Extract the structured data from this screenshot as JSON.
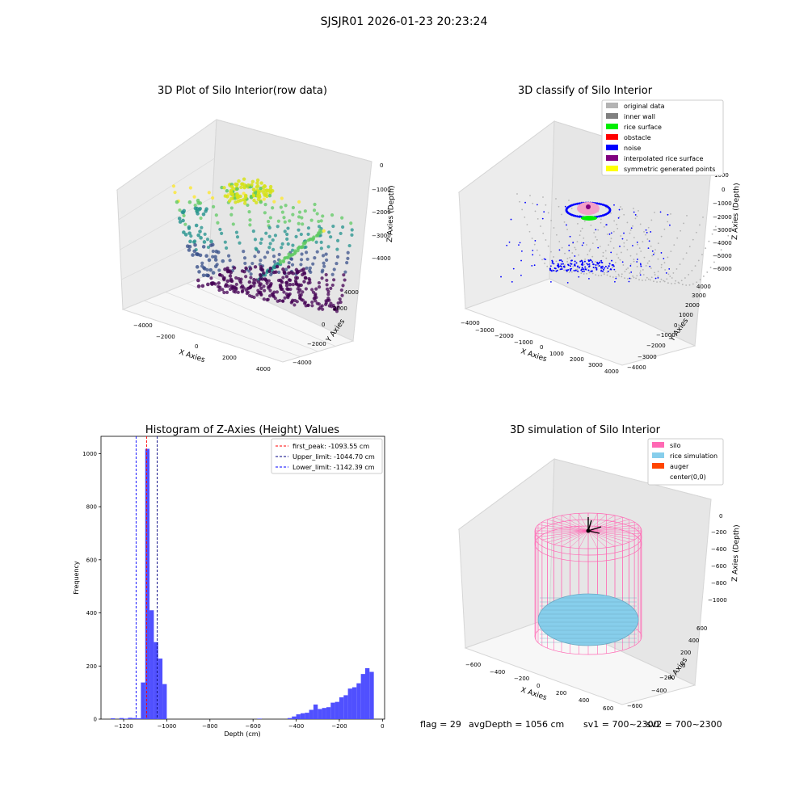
{
  "figure": {
    "suptitle": "SJSJR01 2026-01-23 20:23:24",
    "footer": {
      "flag": "flag = 29",
      "avg_depth": "avgDepth = 1056 cm",
      "sv1": "sv1 = 700~2300",
      "sv2": "sv2 = 700~2300"
    }
  },
  "colors": {
    "hist_bar": "#5050ff",
    "first_peak": "#ff0000",
    "upper_limit": "#000080",
    "lower_limit": "#0000ff",
    "original_data": "#b3b3b3",
    "inner_wall": "#808080",
    "rice_surface": "#00ee00",
    "obstacle": "#ff0000",
    "noise": "#0000ff",
    "interpolated_rice_surface": "#800080",
    "symmetric_generated_points": "#ffff00",
    "silo": "#ff69b4",
    "rice_simulation": "#87ceeb",
    "auger": "#ff4500"
  },
  "chart_data": [
    {
      "type": "scatter3d",
      "title": "3D Plot of Silo Interior(row data)",
      "xlabel": "X Axies",
      "ylabel": "Y Axies",
      "zlabel": "Z Axies (Depth)",
      "x_ticks": [
        "−4000",
        "−2000",
        "0",
        "2000",
        "4000"
      ],
      "y_ticks": [
        "−4000",
        "−2000",
        "0",
        "2000",
        "4000"
      ],
      "z_ticks": [
        "0",
        "−1000",
        "−2000",
        "−3000",
        "−4000"
      ],
      "colormap": "viridis"
    },
    {
      "type": "scatter3d",
      "title": "3D classify of Silo Interior",
      "xlabel": "X Axies",
      "ylabel": "Y Axies",
      "zlabel": "Z Axies (Depth)",
      "x_ticks": [
        "−4000",
        "−3000",
        "−2000",
        "−1000",
        "0",
        "1000",
        "2000",
        "3000",
        "4000"
      ],
      "y_ticks": [
        "−4000",
        "−3000",
        "−2000",
        "−1000",
        "0",
        "1000",
        "2000",
        "3000",
        "4000"
      ],
      "z_ticks": [
        "1000",
        "0",
        "−1000",
        "−2000",
        "−3000",
        "−4000",
        "−5000",
        "−6000"
      ],
      "legend": [
        {
          "label": "original data",
          "color": "#b3b3b3"
        },
        {
          "label": "inner wall",
          "color": "#808080"
        },
        {
          "label": "rice surface",
          "color": "#00ee00"
        },
        {
          "label": "obstacle",
          "color": "#ff0000"
        },
        {
          "label": "noise",
          "color": "#0000ff"
        },
        {
          "label": "interpolated rice surface",
          "color": "#800080"
        },
        {
          "label": "symmetric generated points",
          "color": "#ffff00"
        }
      ]
    },
    {
      "type": "bar",
      "title": "Histogram of Z-Axies (Height) Values",
      "xlabel": "Depth (cm)",
      "ylabel": "Frequency",
      "xlim": [
        -1305,
        10
      ],
      "ylim": [
        0,
        1065
      ],
      "x_ticks": [
        -1200,
        -1000,
        -800,
        -600,
        -400,
        -200,
        0
      ],
      "x_tick_labels": [
        "−1200",
        "−1000",
        "−800",
        "−600",
        "−400",
        "−200",
        "0"
      ],
      "y_ticks": [
        0,
        200,
        400,
        600,
        800,
        1000
      ],
      "bin_width": 20,
      "bins": [
        {
          "x0": -1260,
          "count": 3
        },
        {
          "x0": -1220,
          "count": 4
        },
        {
          "x0": -1200,
          "count": 2
        },
        {
          "x0": -1180,
          "count": 5
        },
        {
          "x0": -1160,
          "count": 4
        },
        {
          "x0": -1140,
          "count": 3
        },
        {
          "x0": -1120,
          "count": 138
        },
        {
          "x0": -1100,
          "count": 1018
        },
        {
          "x0": -1080,
          "count": 410
        },
        {
          "x0": -1060,
          "count": 290
        },
        {
          "x0": -1040,
          "count": 228
        },
        {
          "x0": -1020,
          "count": 132
        },
        {
          "x0": -580,
          "count": 2
        },
        {
          "x0": -440,
          "count": 4
        },
        {
          "x0": -420,
          "count": 10
        },
        {
          "x0": -400,
          "count": 18
        },
        {
          "x0": -380,
          "count": 22
        },
        {
          "x0": -360,
          "count": 24
        },
        {
          "x0": -340,
          "count": 35
        },
        {
          "x0": -320,
          "count": 55
        },
        {
          "x0": -300,
          "count": 38
        },
        {
          "x0": -280,
          "count": 42
        },
        {
          "x0": -260,
          "count": 45
        },
        {
          "x0": -240,
          "count": 62
        },
        {
          "x0": -220,
          "count": 65
        },
        {
          "x0": -200,
          "count": 82
        },
        {
          "x0": -180,
          "count": 90
        },
        {
          "x0": -160,
          "count": 115
        },
        {
          "x0": -140,
          "count": 120
        },
        {
          "x0": -120,
          "count": 135
        },
        {
          "x0": -100,
          "count": 170
        },
        {
          "x0": -80,
          "count": 192
        },
        {
          "x0": -60,
          "count": 178
        }
      ],
      "vlines": [
        {
          "x": -1093.55,
          "label": "first_peak: -1093.55 cm",
          "color": "#ff0000"
        },
        {
          "x": -1044.7,
          "label": "Upper_limit: -1044.70 cm",
          "color": "#000080"
        },
        {
          "x": -1142.39,
          "label": "Lower_limit: -1142.39 cm",
          "color": "#0000ff"
        }
      ],
      "legend_position": "top-right"
    },
    {
      "type": "scatter3d",
      "title": "3D simulation of Silo Interior",
      "xlabel": "X Axies",
      "ylabel": "Y Axies",
      "zlabel": "Z Axies (Depth)",
      "x_ticks": [
        "−600",
        "−400",
        "−200",
        "0",
        "200",
        "400",
        "600"
      ],
      "y_ticks": [
        "−600",
        "−400",
        "−200",
        "0",
        "200",
        "400",
        "600"
      ],
      "z_ticks": [
        "0",
        "−200",
        "−400",
        "−600",
        "−800",
        "−1000"
      ],
      "legend": [
        {
          "label": "silo",
          "color": "#ff69b4"
        },
        {
          "label": "rice simulation",
          "color": "#87ceeb"
        },
        {
          "label": "auger",
          "color": "#ff4500"
        },
        {
          "label": "center(0,0)",
          "color": ""
        }
      ]
    }
  ]
}
